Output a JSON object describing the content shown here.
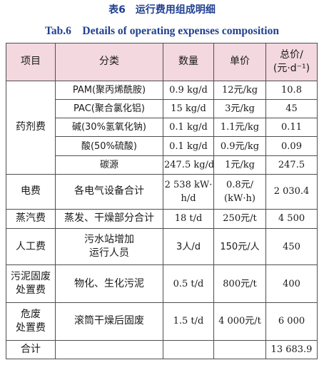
{
  "caption": {
    "cn": "表6　运行费用组成明细",
    "en": "Tab.6　Details of operating expenses composition"
  },
  "headers": {
    "item": "项目",
    "category": "分类",
    "quantity": "数量",
    "unit_price": "单价",
    "total_line1": "总价/",
    "total_line2": "(元·d⁻¹)"
  },
  "rows": {
    "chem_group": "药剂费",
    "pam": {
      "category": "PAM(聚丙烯酰胺)",
      "quantity": "0.9 kg/d",
      "unit_price": "12元/kg",
      "total": "10.8"
    },
    "pac": {
      "category": "PAC(聚合氯化铝)",
      "quantity": "15 kg/d",
      "unit_price": "3元/kg",
      "total": "45"
    },
    "naoh": {
      "category": "碱(30%氢氧化钠)",
      "quantity": "0.1 kg/d",
      "unit_price": "1.1元/kg",
      "total": "0.11"
    },
    "acid": {
      "category": "酸(50%硫酸)",
      "quantity": "0.1 kg/d",
      "unit_price": "0.9元/kg",
      "total": "0.09"
    },
    "carbon": {
      "category": "碳源",
      "quantity": "247.5 kg/d",
      "unit_price": "1元/kg",
      "total": "247.5"
    },
    "electric": {
      "item": "电费",
      "category": "各电气设备合计",
      "quantity_l1": "2 538 kW·",
      "quantity_l2": "h/d",
      "unit_price_l1": "0.8元/",
      "unit_price_l2": "(kW·h)",
      "total": "2 030.4"
    },
    "steam": {
      "item": "蒸汽费",
      "category": "蒸发、干燥部分合计",
      "quantity": "18 t/d",
      "unit_price": "250元/t",
      "total": "4 500"
    },
    "labor": {
      "item": "人工费",
      "category_l1": "污水站增加",
      "category_l2": "运行人员",
      "quantity": "3人/d",
      "unit_price": "150元/人",
      "total": "450"
    },
    "sludge": {
      "item_l1": "污泥固废",
      "item_l2": "处置费",
      "category": "物化、生化污泥",
      "quantity": "0.5 t/d",
      "unit_price": "800元/t",
      "total": "400"
    },
    "hazard": {
      "item_l1": "危废",
      "item_l2": "处置费",
      "category": "滚筒干燥后固废",
      "quantity": "1.5 t/d",
      "unit_price": "4 000元/t",
      "total": "6 000"
    },
    "sum": {
      "item": "合计",
      "total": "13 683.9"
    }
  }
}
